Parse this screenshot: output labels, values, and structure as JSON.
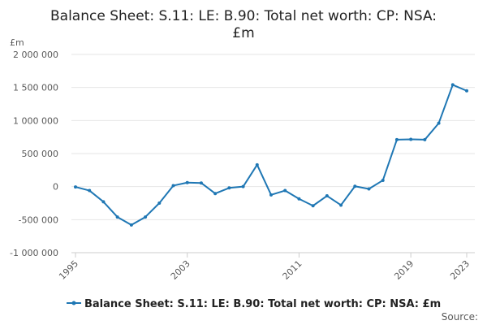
{
  "chart_data": {
    "type": "line",
    "title_lines": [
      "Balance Sheet: S.11: LE: B.90: Total net worth: CP: NSA:",
      "£m"
    ],
    "unit": "£m",
    "x": [
      1995,
      1996,
      1997,
      1998,
      1999,
      2000,
      2001,
      2002,
      2003,
      2004,
      2005,
      2006,
      2007,
      2008,
      2009,
      2010,
      2011,
      2012,
      2013,
      2014,
      2015,
      2016,
      2017,
      2018,
      2019,
      2020,
      2021,
      2022,
      2023
    ],
    "series": [
      {
        "name": "Balance Sheet: S.11: LE: B.90: Total net worth: CP: NSA: £m",
        "color": "#1f77b4",
        "values": [
          -5000,
          -60000,
          -230000,
          -460000,
          -580000,
          -460000,
          -250000,
          15000,
          60000,
          55000,
          -105000,
          -20000,
          0,
          330000,
          -125000,
          -60000,
          -185000,
          -290000,
          -140000,
          -280000,
          5000,
          -35000,
          95000,
          710000,
          715000,
          710000,
          960000,
          1540000,
          1450000
        ]
      }
    ],
    "y_ticks": [
      {
        "value": 2000000,
        "label": "2 000 000"
      },
      {
        "value": 1500000,
        "label": "1 500 000"
      },
      {
        "value": 1000000,
        "label": "1 000 000"
      },
      {
        "value": 500000,
        "label": "500 000"
      },
      {
        "value": 0,
        "label": "0"
      },
      {
        "value": -500000,
        "label": "-500 000"
      },
      {
        "value": -1000000,
        "label": "-1 000 000"
      }
    ],
    "x_ticks": [
      {
        "value": 1995,
        "label": "1995"
      },
      {
        "value": 2003,
        "label": "2003"
      },
      {
        "value": 2011,
        "label": "2011"
      },
      {
        "value": 2019,
        "label": "2019"
      },
      {
        "value": 2023,
        "label": "2023"
      }
    ],
    "xlim": [
      1995,
      2023
    ],
    "ylim": [
      -1000000,
      2000000
    ],
    "legend_position": "bottom",
    "grid": true,
    "source_label": "Source:"
  }
}
